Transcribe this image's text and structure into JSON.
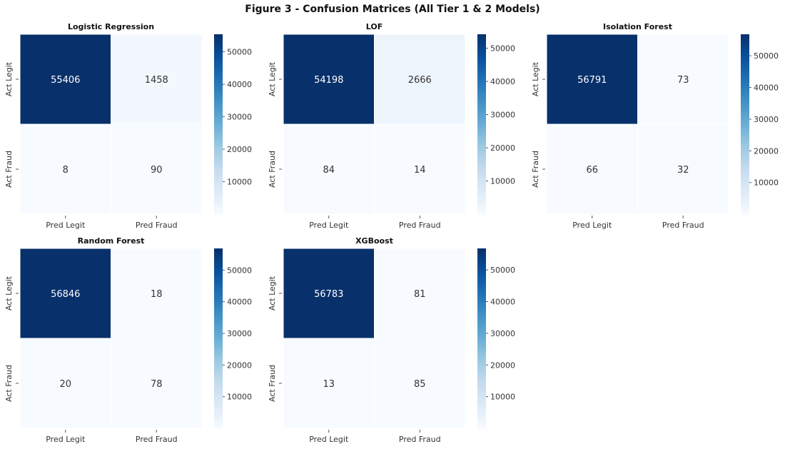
{
  "title": "Figure 3 - Confusion Matrices (All Tier 1 & 2 Models)",
  "chart_data": [
    {
      "type": "heatmap",
      "title": "Logistic Regression",
      "x_tick_labels": [
        "Pred Legit",
        "Pred Fraud"
      ],
      "y_tick_labels": [
        "Act Legit",
        "Act Fraud"
      ],
      "values": [
        [
          55406,
          1458
        ],
        [
          8,
          90
        ]
      ],
      "colormap": "Blues",
      "colorbar_ticks": [
        10000,
        20000,
        30000,
        40000,
        50000
      ]
    },
    {
      "type": "heatmap",
      "title": "LOF",
      "x_tick_labels": [
        "Pred Legit",
        "Pred Fraud"
      ],
      "y_tick_labels": [
        "Act Legit",
        "Act Fraud"
      ],
      "values": [
        [
          54198,
          2666
        ],
        [
          84,
          14
        ]
      ],
      "colormap": "Blues",
      "colorbar_ticks": [
        10000,
        20000,
        30000,
        40000,
        50000
      ]
    },
    {
      "type": "heatmap",
      "title": "Isolation Forest",
      "x_tick_labels": [
        "Pred Legit",
        "Pred Fraud"
      ],
      "y_tick_labels": [
        "Act Legit",
        "Act Fraud"
      ],
      "values": [
        [
          56791,
          73
        ],
        [
          66,
          32
        ]
      ],
      "colormap": "Blues",
      "colorbar_ticks": [
        10000,
        20000,
        30000,
        40000,
        50000
      ]
    },
    {
      "type": "heatmap",
      "title": "Random Forest",
      "x_tick_labels": [
        "Pred Legit",
        "Pred Fraud"
      ],
      "y_tick_labels": [
        "Act Legit",
        "Act Fraud"
      ],
      "values": [
        [
          56846,
          18
        ],
        [
          20,
          78
        ]
      ],
      "colormap": "Blues",
      "colorbar_ticks": [
        10000,
        20000,
        30000,
        40000,
        50000
      ]
    },
    {
      "type": "heatmap",
      "title": "XGBoost",
      "x_tick_labels": [
        "Pred Legit",
        "Pred Fraud"
      ],
      "y_tick_labels": [
        "Act Legit",
        "Act Fraud"
      ],
      "values": [
        [
          56783,
          81
        ],
        [
          13,
          85
        ]
      ],
      "colormap": "Blues",
      "colorbar_ticks": [
        10000,
        20000,
        30000,
        40000,
        50000
      ]
    }
  ]
}
